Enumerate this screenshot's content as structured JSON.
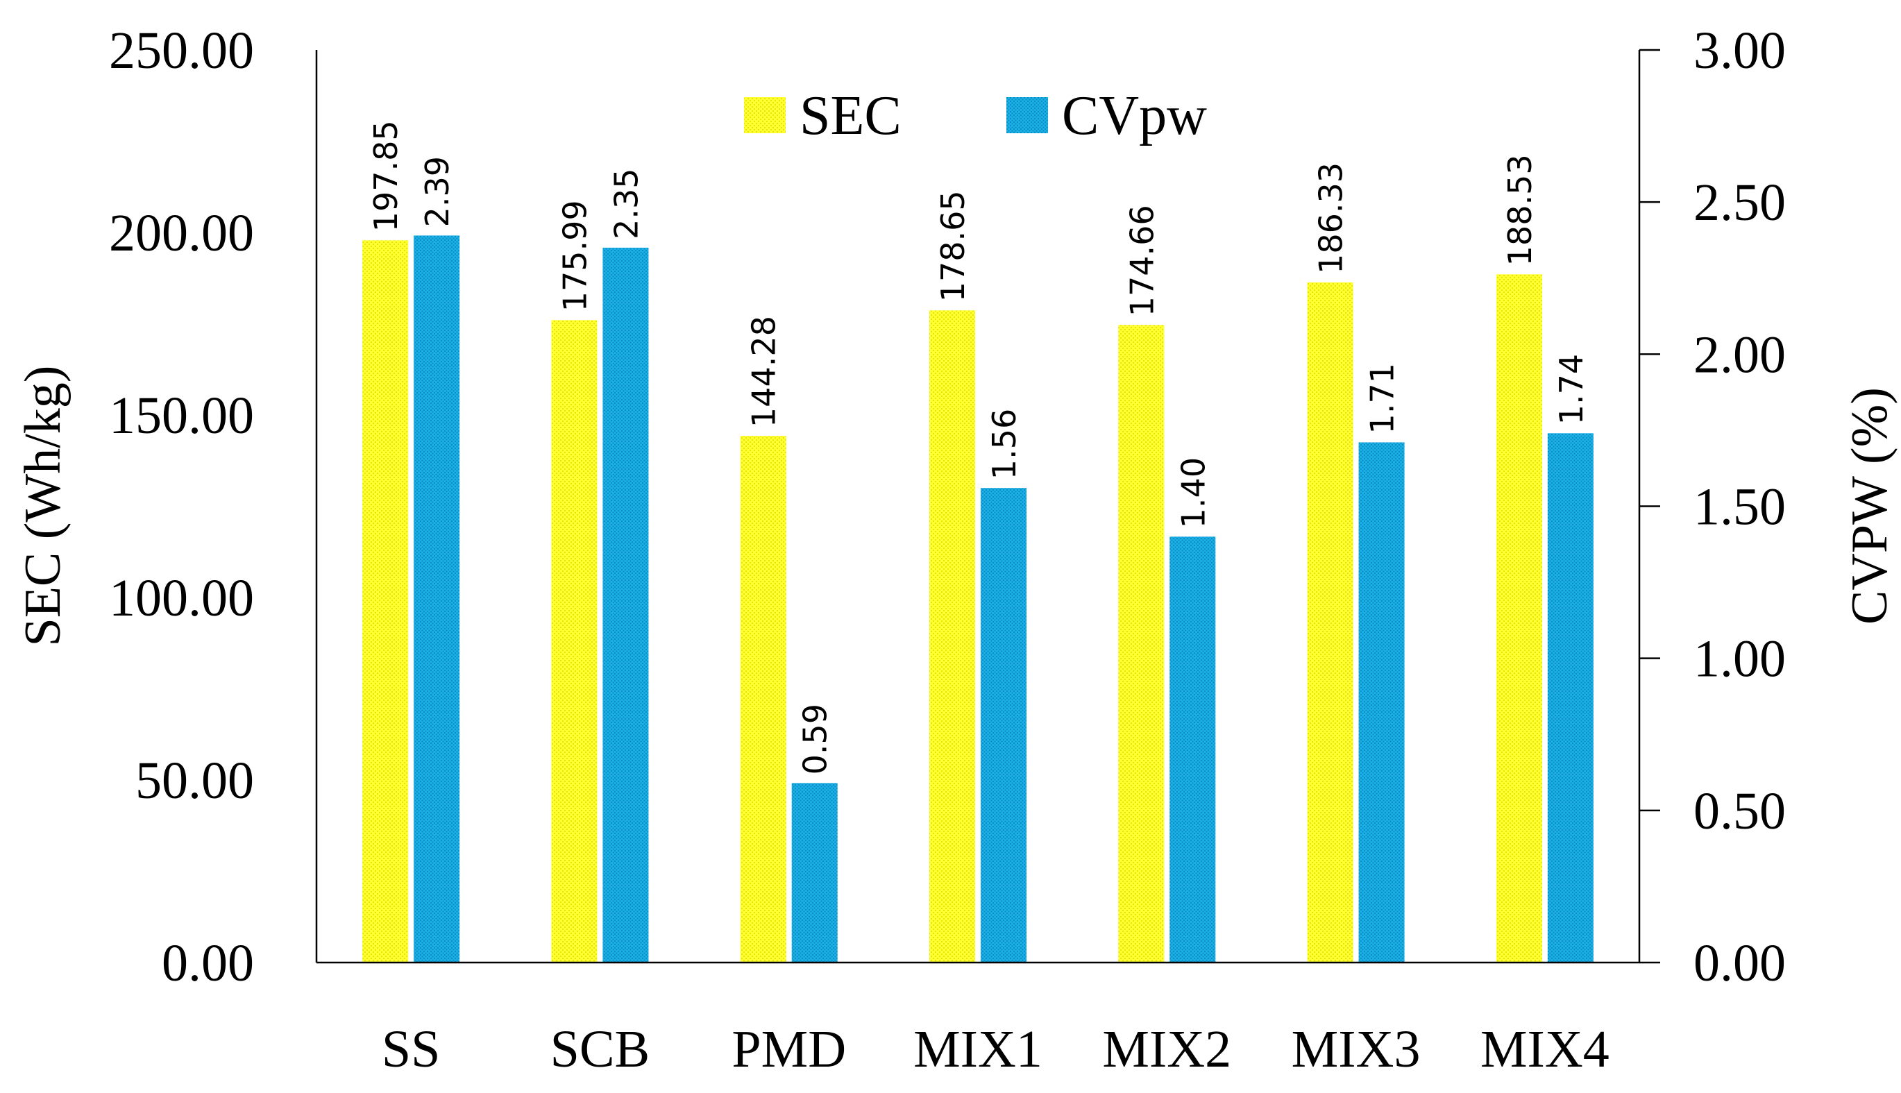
{
  "chart_data": {
    "type": "bar",
    "title": "",
    "categories": [
      "SS",
      "SCB",
      "PMD",
      "MIX1",
      "MIX2",
      "MIX3",
      "MIX4"
    ],
    "series": [
      {
        "name": "SEC",
        "axis": "left",
        "values": [
          197.85,
          175.99,
          144.28,
          178.65,
          174.66,
          186.33,
          188.53
        ],
        "labels": [
          "197.85",
          "175.99",
          "144.28",
          "178.65",
          "174.66",
          "186.33",
          "188.53"
        ],
        "color": "#FFFF33",
        "pattern_color": "#E5E500"
      },
      {
        "name": "CVpw",
        "axis": "right",
        "values": [
          2.39,
          2.35,
          0.59,
          1.56,
          1.4,
          1.71,
          1.74
        ],
        "labels": [
          "2.39",
          "2.35",
          "0.59",
          "1.56",
          "1.40",
          "1.71",
          "1.74"
        ],
        "color": "#1AB0E8",
        "pattern_color": "#0E8CC0"
      }
    ],
    "xlabel": "",
    "ylabel": "SEC (Wh/kg)",
    "y2label": "CVPW (%)",
    "ylim": [
      0,
      250
    ],
    "y2lim": [
      0,
      3
    ],
    "yticks": [
      "0.00",
      "50.00",
      "100.00",
      "150.00",
      "200.00",
      "250.00"
    ],
    "y2ticks": [
      "0.00",
      "0.50",
      "1.00",
      "1.50",
      "2.00",
      "2.50",
      "3.00"
    ],
    "legend": {
      "position": "top-center",
      "entries": [
        "SEC",
        "CVpw"
      ]
    },
    "grid": false
  }
}
